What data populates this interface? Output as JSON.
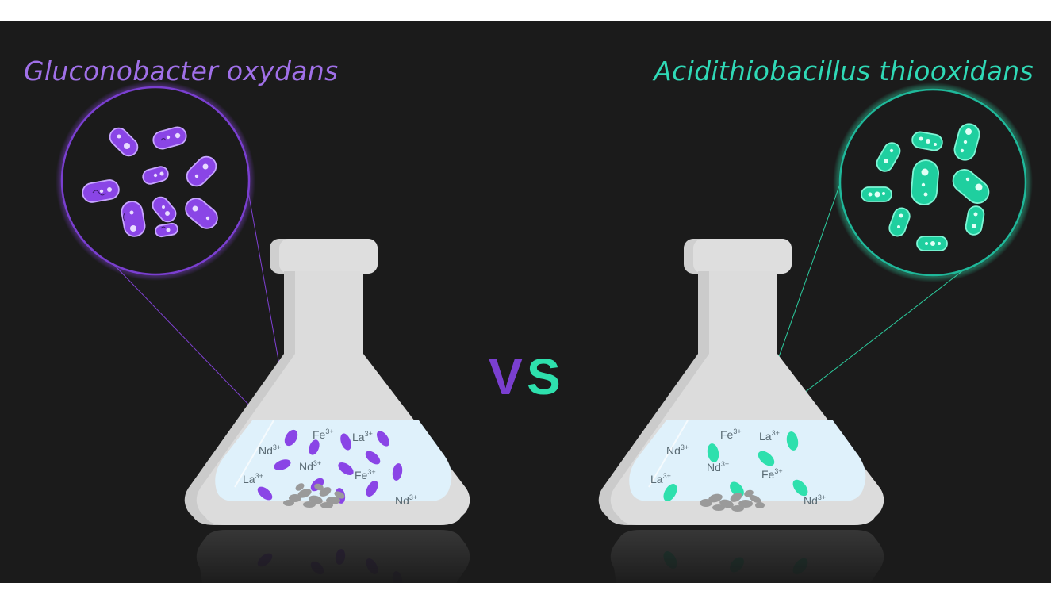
{
  "titles": {
    "left": "Gluconobacter oxydans",
    "right": "Acidithiobacillus thiooxidans"
  },
  "versus": {
    "v": "V",
    "s": "S"
  },
  "colors": {
    "background": "#1b1b1b",
    "purple": "#8a45e6",
    "teal": "#2ee0ad",
    "flask": "#d9d9d9",
    "liquid": "#dff1fb"
  },
  "ions": {
    "fe": "Fe",
    "la": "La",
    "nd": "Nd",
    "charge": "3+"
  }
}
